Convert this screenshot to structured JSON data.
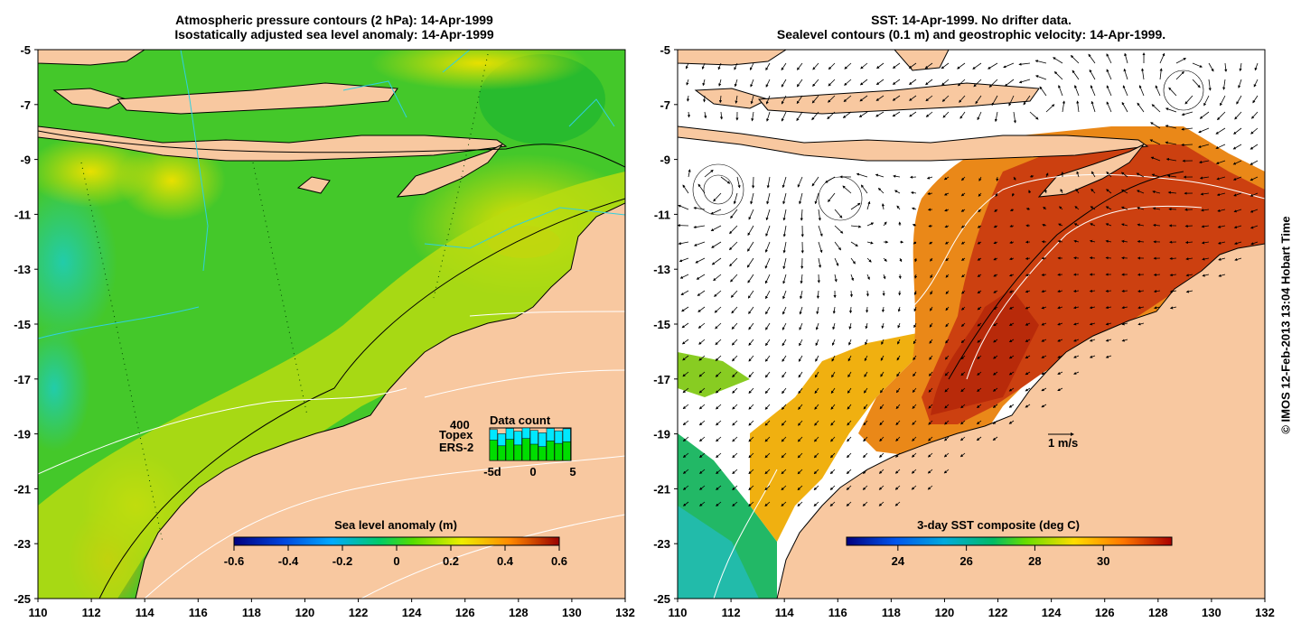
{
  "left_panel": {
    "title_line1": "Atmospheric pressure contours (2 hPa): 14-Apr-1999",
    "title_line2": "Isostatically adjusted sea level anomaly: 14-Apr-1999",
    "x_ticks": [
      "110",
      "112",
      "114",
      "116",
      "118",
      "120",
      "122",
      "124",
      "126",
      "128",
      "130",
      "132"
    ],
    "y_ticks": [
      "-5",
      "-7",
      "-9",
      "-11",
      "-13",
      "-15",
      "-17",
      "-19",
      "-21",
      "-23",
      "-25"
    ],
    "colorbar": {
      "title": "Sea level anomaly (m)",
      "ticks": [
        "-0.6",
        "-0.4",
        "-0.2",
        "0",
        "0.2",
        "0.4",
        "0.6"
      ],
      "min": -0.6,
      "max": 0.6
    },
    "data_count": {
      "title": "Data count",
      "max_label": "400",
      "topex_label": "Topex",
      "ers2_label": "ERS-2",
      "axis_labels": [
        "-5d",
        "0",
        "5"
      ],
      "topex_color": "#00e8ff",
      "ers2_color": "#00dd00",
      "days": [
        -5,
        -4,
        -3,
        -2,
        -1,
        0,
        1,
        2,
        3,
        4
      ],
      "topex_counts": [
        380,
        330,
        395,
        360,
        400,
        370,
        340,
        395,
        365,
        390
      ],
      "ers2_counts": [
        250,
        180,
        260,
        190,
        270,
        200,
        170,
        240,
        210,
        230
      ]
    }
  },
  "right_panel": {
    "title_line1": "SST: 14-Apr-1999. No drifter data.",
    "title_line2": "Sealevel contours (0.1 m) and geostrophic velocity: 14-Apr-1999.",
    "x_ticks": [
      "110",
      "112",
      "114",
      "116",
      "118",
      "120",
      "122",
      "124",
      "126",
      "128",
      "130",
      "132"
    ],
    "y_ticks": [
      "-5",
      "-7",
      "-9",
      "-11",
      "-13",
      "-15",
      "-17",
      "-19",
      "-21",
      "-23",
      "-25"
    ],
    "velocity_scale_label": "1 m/s",
    "colorbar": {
      "title": "3-day SST composite (deg C)",
      "ticks": [
        "24",
        "26",
        "28",
        "30"
      ],
      "min": 22.5,
      "max": 32
    }
  },
  "copyright": "© IMOS 12-Feb-2013 13:04 Hobart Time",
  "colors": {
    "land": "#f8c8a0",
    "ocean_green": "#44cc22",
    "ocean_yellow": "#ccdd00",
    "sst_red": "#c83010",
    "sst_orange": "#e88818"
  }
}
